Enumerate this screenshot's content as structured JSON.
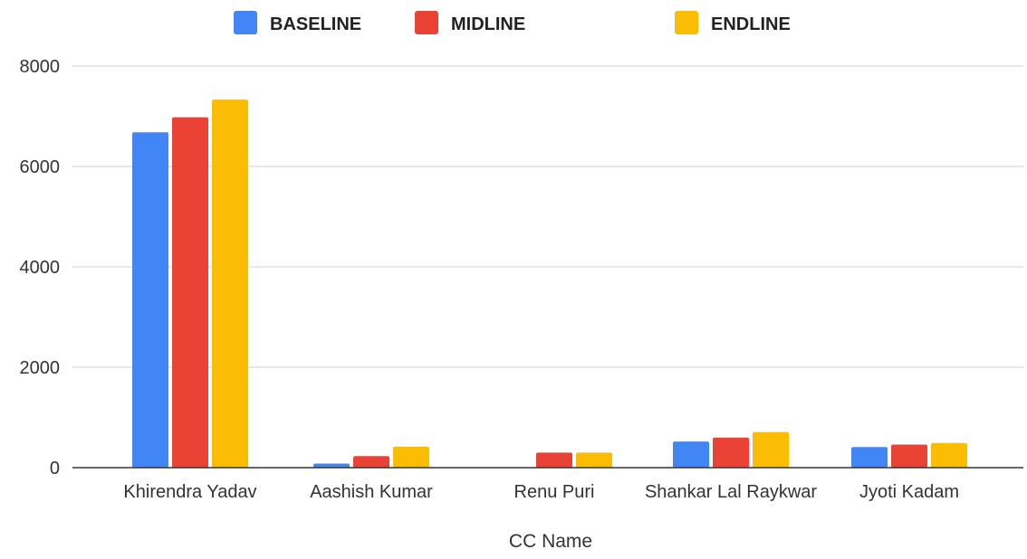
{
  "chart_data": {
    "type": "bar",
    "categories": [
      "Khirendra Yadav",
      "Aashish Kumar",
      "Renu Puri",
      "Shankar Lal Raykwar",
      "Jyoti Kadam"
    ],
    "series": [
      {
        "name": "BASELINE",
        "color": "#4285F4",
        "values": [
          6680,
          80,
          0,
          520,
          410
        ]
      },
      {
        "name": "MIDLINE",
        "color": "#EA4335",
        "values": [
          6980,
          230,
          300,
          600,
          460
        ]
      },
      {
        "name": "ENDLINE",
        "color": "#FBBC04",
        "values": [
          7330,
          420,
          300,
          710,
          490
        ]
      }
    ],
    "xlabel": "CC Name",
    "ylabel": "",
    "ylim": [
      0,
      8000
    ],
    "yticks": [
      "0",
      "2000",
      "4000",
      "6000",
      "8000"
    ],
    "ytick_values": [
      0,
      2000,
      4000,
      6000,
      8000
    ],
    "grid": true,
    "legend_position": "top-center"
  }
}
